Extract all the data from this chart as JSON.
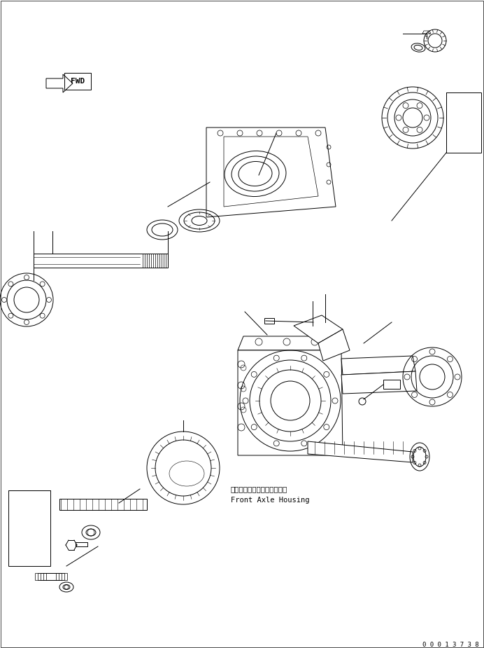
{
  "background_color": "#ffffff",
  "line_color": "#000000",
  "figure_width": 6.92,
  "figure_height": 9.25,
  "dpi": 100,
  "serial_number": "0 0 0 1 3 7 3 8",
  "label_japanese": "フロントアクスルハウジング",
  "label_english": "Front Axle Housing",
  "fwd_label": "FWD"
}
